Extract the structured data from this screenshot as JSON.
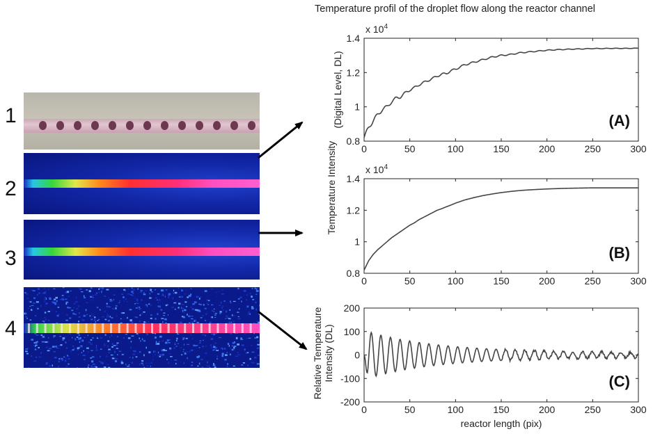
{
  "figure": {
    "title": "Temperature profil of the droplet flow along the reactor channel",
    "left_labels": [
      "1",
      "2",
      "3",
      "4"
    ],
    "colors": {
      "line": "#444444",
      "axis": "#222222",
      "arrow": "#000000"
    }
  },
  "chart_data": [
    {
      "type": "line",
      "panel": "(A)",
      "title": "Temperature profil of the droplet flow along the reactor channel",
      "xlabel": "",
      "ylabel": "(Digital Level, DL)",
      "ylabel_shared": "Temperature Intensity",
      "exponent_label": "x 10",
      "exponent_power": "4",
      "xlim": [
        0,
        300
      ],
      "ylim": [
        0.8,
        1.4
      ],
      "xticks": [
        "0",
        "50",
        "100",
        "150",
        "200",
        "250",
        "300"
      ],
      "yticks": [
        "0.8",
        "1",
        "1.2",
        "1.4"
      ],
      "ytick_values": [
        0.8,
        1.0,
        1.2,
        1.4
      ],
      "series": [
        {
          "x": [
            0,
            5,
            10,
            15,
            20,
            25,
            30,
            35,
            40,
            45,
            50,
            55,
            60,
            65,
            70,
            75,
            80,
            85,
            90,
            95,
            100,
            110,
            120,
            130,
            140,
            150,
            160,
            170,
            180,
            190,
            200,
            210,
            220,
            230,
            240,
            250,
            260,
            270,
            280,
            290,
            300
          ],
          "y": [
            0.82,
            0.88,
            0.92,
            0.955,
            0.985,
            1.0,
            1.03,
            1.05,
            1.06,
            1.08,
            1.1,
            1.11,
            1.13,
            1.14,
            1.155,
            1.165,
            1.18,
            1.19,
            1.195,
            1.21,
            1.22,
            1.245,
            1.26,
            1.275,
            1.29,
            1.3,
            1.305,
            1.315,
            1.32,
            1.325,
            1.33,
            1.333,
            1.335,
            1.337,
            1.338,
            1.34,
            1.34,
            1.341,
            1.341,
            1.341,
            1.342
          ]
        }
      ],
      "grid": false
    },
    {
      "type": "line",
      "panel": "(B)",
      "xlabel": "",
      "ylabel": "Temperature Intensity",
      "exponent_label": "x 10",
      "exponent_power": "4",
      "xlim": [
        0,
        300
      ],
      "ylim": [
        0.8,
        1.4
      ],
      "xticks": [
        "0",
        "50",
        "100",
        "150",
        "200",
        "250",
        "300"
      ],
      "yticks": [
        "0.8",
        "1",
        "1.2",
        "1.4"
      ],
      "ytick_values": [
        0.8,
        1.0,
        1.2,
        1.4
      ],
      "series": [
        {
          "x": [
            0,
            5,
            10,
            15,
            20,
            25,
            30,
            35,
            40,
            45,
            50,
            55,
            60,
            65,
            70,
            75,
            80,
            85,
            90,
            95,
            100,
            110,
            120,
            130,
            140,
            150,
            160,
            170,
            180,
            190,
            200,
            210,
            220,
            230,
            240,
            250,
            260,
            270,
            280,
            290,
            300
          ],
          "y": [
            0.82,
            0.88,
            0.92,
            0.95,
            0.975,
            1.0,
            1.025,
            1.045,
            1.065,
            1.085,
            1.105,
            1.12,
            1.14,
            1.155,
            1.17,
            1.185,
            1.2,
            1.21,
            1.222,
            1.233,
            1.245,
            1.265,
            1.28,
            1.293,
            1.303,
            1.312,
            1.319,
            1.325,
            1.329,
            1.332,
            1.335,
            1.337,
            1.339,
            1.34,
            1.341,
            1.342,
            1.342,
            1.342,
            1.342,
            1.342,
            1.342
          ]
        }
      ],
      "grid": false
    },
    {
      "type": "line",
      "panel": "(C)",
      "xlabel": "reactor length (pix)",
      "ylabel_lines": [
        "Relative Temperature",
        "Intensity  (DL)"
      ],
      "xlim": [
        0,
        300
      ],
      "ylim": [
        -200,
        200
      ],
      "xticks": [
        "0",
        "50",
        "100",
        "150",
        "200",
        "250",
        "300"
      ],
      "yticks": [
        "-200",
        "-100",
        "0",
        "100",
        "200"
      ],
      "ytick_values": [
        -200,
        -100,
        0,
        100,
        200
      ],
      "series": [
        {
          "x": [],
          "y": []
        }
      ],
      "oscillation": {
        "period": 10.5,
        "amp_start": 105,
        "amp_end": 10,
        "decay_len": 170
      },
      "grid": false
    }
  ]
}
